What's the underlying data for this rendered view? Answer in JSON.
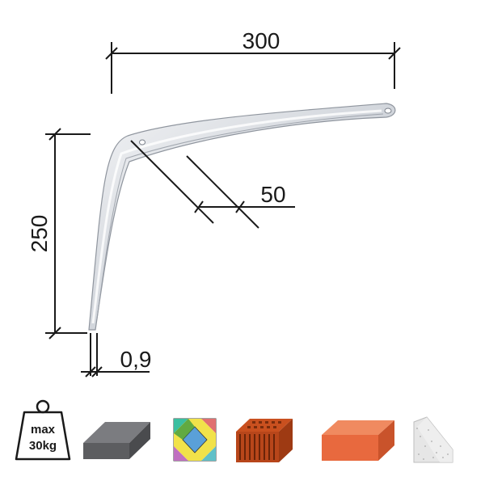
{
  "dimensions": {
    "width": "300",
    "height": "250",
    "depth": "50",
    "thickness": "0,9"
  },
  "load_icon": {
    "line1": "max",
    "line2": "30kg"
  },
  "material_icons": [
    "concrete-slab-icon",
    "tile-icon",
    "hollow-brick-icon",
    "solid-brick-icon",
    "stone-block-icon"
  ],
  "colors": {
    "bracket": "#d2d6dc",
    "concrete": "#5c5d60",
    "brick": "#e8693e",
    "hollow_brick": "#c9501f",
    "stone": "#e6e6e6"
  }
}
